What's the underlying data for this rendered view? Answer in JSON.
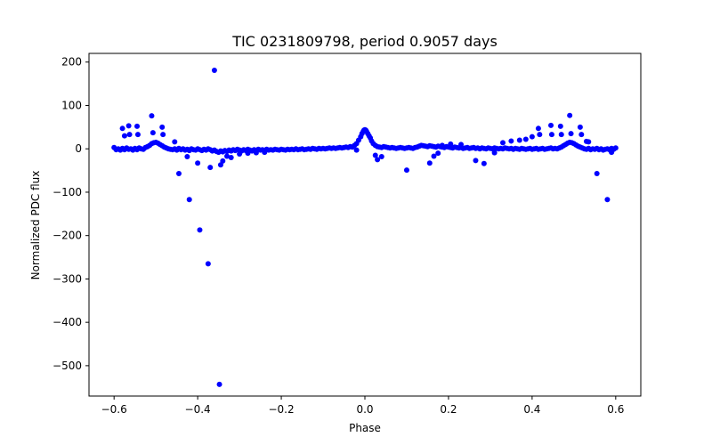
{
  "chart_data": {
    "type": "scatter",
    "title": "TIC 0231809798, period 0.9057 days",
    "xlabel": "Phase",
    "ylabel": "Normalized PDC flux",
    "xlim": [
      -0.66,
      0.66
    ],
    "ylim": [
      -570,
      220
    ],
    "x_ticks": [
      -0.6,
      -0.4,
      -0.2,
      0.0,
      0.2,
      0.4,
      0.6
    ],
    "x_tick_labels": [
      "−0.6",
      "−0.4",
      "−0.2",
      "0.0",
      "0.2",
      "0.4",
      "0.6"
    ],
    "y_ticks": [
      200,
      100,
      0,
      -100,
      -200,
      -300,
      -400,
      -500
    ],
    "y_tick_labels": [
      "200",
      "100",
      "0",
      "−100",
      "−200",
      "−300",
      "−400",
      "−500"
    ],
    "grid": false,
    "legend": "none",
    "marker_color": "#0000ff",
    "series": [
      {
        "points": [
          [
            -0.6,
            3
          ],
          [
            -0.595,
            -2
          ],
          [
            -0.59,
            0
          ],
          [
            -0.585,
            -3
          ],
          [
            -0.58,
            1
          ],
          [
            -0.575,
            -2
          ],
          [
            -0.57,
            2
          ],
          [
            -0.565,
            -1
          ],
          [
            -0.56,
            0
          ],
          [
            -0.555,
            -3
          ],
          [
            -0.55,
            1
          ],
          [
            -0.545,
            -2
          ],
          [
            -0.54,
            2
          ],
          [
            -0.535,
            0
          ],
          [
            -0.53,
            -1
          ],
          [
            -0.525,
            3
          ],
          [
            -0.52,
            5
          ],
          [
            -0.515,
            8
          ],
          [
            -0.51,
            12
          ],
          [
            -0.505,
            14
          ],
          [
            -0.5,
            15
          ],
          [
            -0.495,
            13
          ],
          [
            -0.49,
            10
          ],
          [
            -0.485,
            7
          ],
          [
            -0.48,
            4
          ],
          [
            -0.475,
            2
          ],
          [
            -0.47,
            0
          ],
          [
            -0.465,
            -1
          ],
          [
            -0.46,
            -2
          ],
          [
            -0.455,
            0
          ],
          [
            -0.45,
            -3
          ],
          [
            -0.445,
            1
          ],
          [
            -0.44,
            -2
          ],
          [
            -0.435,
            0
          ],
          [
            -0.43,
            -3
          ],
          [
            -0.425,
            -1
          ],
          [
            -0.42,
            -4
          ],
          [
            -0.415,
            0
          ],
          [
            -0.41,
            -2
          ],
          [
            -0.405,
            -3
          ],
          [
            -0.4,
            0
          ],
          [
            -0.395,
            -2
          ],
          [
            -0.39,
            -4
          ],
          [
            -0.385,
            -1
          ],
          [
            -0.38,
            -3
          ],
          [
            -0.375,
            0
          ],
          [
            -0.37,
            -2
          ],
          [
            -0.365,
            -5
          ],
          [
            -0.36,
            -3
          ],
          [
            -0.355,
            -6
          ],
          [
            -0.35,
            -8
          ],
          [
            -0.345,
            -5
          ],
          [
            -0.34,
            -7
          ],
          [
            -0.335,
            -4
          ],
          [
            -0.33,
            -6
          ],
          [
            -0.325,
            -3
          ],
          [
            -0.32,
            -5
          ],
          [
            -0.315,
            -2
          ],
          [
            -0.31,
            -4
          ],
          [
            -0.305,
            -1
          ],
          [
            -0.3,
            -3
          ],
          [
            -0.295,
            -5
          ],
          [
            -0.29,
            -2
          ],
          [
            -0.285,
            -4
          ],
          [
            -0.28,
            -1
          ],
          [
            -0.275,
            -3
          ],
          [
            -0.27,
            -5
          ],
          [
            -0.265,
            -2
          ],
          [
            -0.26,
            -4
          ],
          [
            -0.255,
            -1
          ],
          [
            -0.25,
            -3
          ],
          [
            -0.245,
            -2
          ],
          [
            -0.24,
            -4
          ],
          [
            -0.235,
            -1
          ],
          [
            -0.23,
            -3
          ],
          [
            -0.225,
            -2
          ],
          [
            -0.22,
            -3
          ],
          [
            -0.215,
            -1
          ],
          [
            -0.21,
            -2
          ],
          [
            -0.205,
            -3
          ],
          [
            -0.2,
            -1
          ],
          [
            -0.195,
            -2
          ],
          [
            -0.19,
            -3
          ],
          [
            -0.185,
            -1
          ],
          [
            -0.18,
            -2
          ],
          [
            -0.175,
            -1
          ],
          [
            -0.17,
            -2
          ],
          [
            -0.165,
            0
          ],
          [
            -0.16,
            -2
          ],
          [
            -0.155,
            -1
          ],
          [
            -0.15,
            0
          ],
          [
            -0.145,
            -2
          ],
          [
            -0.14,
            -1
          ],
          [
            -0.135,
            0
          ],
          [
            -0.13,
            -1
          ],
          [
            -0.125,
            1
          ],
          [
            -0.12,
            0
          ],
          [
            -0.115,
            -1
          ],
          [
            -0.11,
            1
          ],
          [
            -0.105,
            0
          ],
          [
            -0.1,
            1
          ],
          [
            -0.095,
            0
          ],
          [
            -0.09,
            1
          ],
          [
            -0.085,
            2
          ],
          [
            -0.08,
            1
          ],
          [
            -0.075,
            2
          ],
          [
            -0.07,
            1
          ],
          [
            -0.065,
            2
          ],
          [
            -0.06,
            3
          ],
          [
            -0.055,
            2
          ],
          [
            -0.05,
            3
          ],
          [
            -0.045,
            4
          ],
          [
            -0.04,
            3
          ],
          [
            -0.035,
            5
          ],
          [
            -0.03,
            4
          ],
          [
            -0.025,
            8
          ],
          [
            -0.02,
            12
          ],
          [
            -0.015,
            20
          ],
          [
            -0.01,
            28
          ],
          [
            -0.007,
            35
          ],
          [
            -0.004,
            40
          ],
          [
            -0.002,
            43
          ],
          [
            0.0,
            44
          ],
          [
            0.002,
            43
          ],
          [
            0.004,
            40
          ],
          [
            0.007,
            35
          ],
          [
            0.01,
            30
          ],
          [
            0.013,
            25
          ],
          [
            0.016,
            18
          ],
          [
            0.02,
            12
          ],
          [
            0.025,
            8
          ],
          [
            0.03,
            5
          ],
          [
            0.035,
            4
          ],
          [
            0.04,
            3
          ],
          [
            0.045,
            5
          ],
          [
            0.05,
            4
          ],
          [
            0.055,
            3
          ],
          [
            0.06,
            2
          ],
          [
            0.065,
            3
          ],
          [
            0.07,
            2
          ],
          [
            0.075,
            1
          ],
          [
            0.08,
            2
          ],
          [
            0.085,
            3
          ],
          [
            0.09,
            2
          ],
          [
            0.095,
            1
          ],
          [
            0.1,
            2
          ],
          [
            0.105,
            3
          ],
          [
            0.11,
            2
          ],
          [
            0.115,
            1
          ],
          [
            0.12,
            3
          ],
          [
            0.125,
            4
          ],
          [
            0.13,
            6
          ],
          [
            0.135,
            8
          ],
          [
            0.14,
            7
          ],
          [
            0.145,
            6
          ],
          [
            0.15,
            5
          ],
          [
            0.155,
            7
          ],
          [
            0.16,
            6
          ],
          [
            0.165,
            5
          ],
          [
            0.17,
            4
          ],
          [
            0.175,
            6
          ],
          [
            0.18,
            5
          ],
          [
            0.185,
            4
          ],
          [
            0.19,
            3
          ],
          [
            0.195,
            5
          ],
          [
            0.2,
            4
          ],
          [
            0.205,
            3
          ],
          [
            0.21,
            2
          ],
          [
            0.215,
            4
          ],
          [
            0.22,
            3
          ],
          [
            0.225,
            2
          ],
          [
            0.23,
            3
          ],
          [
            0.235,
            1
          ],
          [
            0.24,
            2
          ],
          [
            0.245,
            3
          ],
          [
            0.25,
            1
          ],
          [
            0.255,
            2
          ],
          [
            0.26,
            3
          ],
          [
            0.265,
            1
          ],
          [
            0.27,
            2
          ],
          [
            0.275,
            0
          ],
          [
            0.28,
            2
          ],
          [
            0.285,
            1
          ],
          [
            0.29,
            0
          ],
          [
            0.295,
            2
          ],
          [
            0.3,
            1
          ],
          [
            0.305,
            0
          ],
          [
            0.31,
            2
          ],
          [
            0.315,
            1
          ],
          [
            0.32,
            0
          ],
          [
            0.325,
            1
          ],
          [
            0.33,
            0
          ],
          [
            0.335,
            2
          ],
          [
            0.34,
            1
          ],
          [
            0.345,
            0
          ],
          [
            0.35,
            1
          ],
          [
            0.355,
            -1
          ],
          [
            0.36,
            1
          ],
          [
            0.365,
            0
          ],
          [
            0.37,
            -1
          ],
          [
            0.375,
            1
          ],
          [
            0.38,
            0
          ],
          [
            0.385,
            -1
          ],
          [
            0.39,
            0
          ],
          [
            0.395,
            1
          ],
          [
            0.4,
            -1
          ],
          [
            0.405,
            0
          ],
          [
            0.41,
            1
          ],
          [
            0.415,
            -1
          ],
          [
            0.42,
            0
          ],
          [
            0.425,
            1
          ],
          [
            0.43,
            -1
          ],
          [
            0.435,
            0
          ],
          [
            0.44,
            1
          ],
          [
            0.445,
            2
          ],
          [
            0.45,
            0
          ],
          [
            0.455,
            1
          ],
          [
            0.46,
            0
          ],
          [
            0.465,
            2
          ],
          [
            0.47,
            4
          ],
          [
            0.475,
            7
          ],
          [
            0.48,
            10
          ],
          [
            0.485,
            13
          ],
          [
            0.49,
            15
          ],
          [
            0.495,
            14
          ],
          [
            0.5,
            12
          ],
          [
            0.505,
            9
          ],
          [
            0.51,
            6
          ],
          [
            0.515,
            4
          ],
          [
            0.52,
            2
          ],
          [
            0.525,
            0
          ],
          [
            0.53,
            -1
          ],
          [
            0.535,
            1
          ],
          [
            0.54,
            -2
          ],
          [
            0.545,
            0
          ],
          [
            0.55,
            -1
          ],
          [
            0.555,
            1
          ],
          [
            0.56,
            -2
          ],
          [
            0.565,
            0
          ],
          [
            0.57,
            -3
          ],
          [
            0.575,
            -1
          ],
          [
            0.58,
            0
          ],
          [
            0.585,
            -2
          ],
          [
            0.59,
            1
          ],
          [
            0.595,
            -1
          ],
          [
            0.6,
            2
          ],
          [
            -0.58,
            47
          ],
          [
            -0.575,
            30
          ],
          [
            -0.565,
            53
          ],
          [
            -0.563,
            33
          ],
          [
            -0.545,
            52
          ],
          [
            -0.543,
            33
          ],
          [
            -0.51,
            76
          ],
          [
            -0.507,
            37
          ],
          [
            -0.485,
            50
          ],
          [
            -0.483,
            33
          ],
          [
            -0.455,
            16
          ],
          [
            -0.445,
            -57
          ],
          [
            -0.425,
            -18
          ],
          [
            -0.42,
            -117
          ],
          [
            -0.4,
            -33
          ],
          [
            -0.395,
            -187
          ],
          [
            -0.375,
            -265
          ],
          [
            -0.37,
            -43
          ],
          [
            -0.36,
            181
          ],
          [
            -0.348,
            -543
          ],
          [
            -0.345,
            -37
          ],
          [
            -0.34,
            -28
          ],
          [
            -0.33,
            -17
          ],
          [
            -0.32,
            -20
          ],
          [
            -0.3,
            -12
          ],
          [
            -0.28,
            -10
          ],
          [
            -0.26,
            -9
          ],
          [
            -0.24,
            -8
          ],
          [
            -0.02,
            -3
          ],
          [
            0.025,
            -15
          ],
          [
            0.03,
            -25
          ],
          [
            0.04,
            -18
          ],
          [
            0.1,
            -49
          ],
          [
            0.155,
            -33
          ],
          [
            0.165,
            -17
          ],
          [
            0.175,
            -10
          ],
          [
            0.185,
            8
          ],
          [
            0.205,
            11
          ],
          [
            0.23,
            10
          ],
          [
            0.265,
            -27
          ],
          [
            0.285,
            -34
          ],
          [
            0.31,
            -9
          ],
          [
            0.33,
            14
          ],
          [
            0.35,
            18
          ],
          [
            0.37,
            20
          ],
          [
            0.385,
            22
          ],
          [
            0.4,
            28
          ],
          [
            0.415,
            47
          ],
          [
            0.418,
            33
          ],
          [
            0.445,
            54
          ],
          [
            0.447,
            33
          ],
          [
            0.468,
            52
          ],
          [
            0.47,
            33
          ],
          [
            0.49,
            77
          ],
          [
            0.493,
            35
          ],
          [
            0.515,
            50
          ],
          [
            0.518,
            33
          ],
          [
            0.53,
            17
          ],
          [
            0.535,
            16
          ],
          [
            0.555,
            -57
          ],
          [
            0.58,
            -117
          ],
          [
            0.59,
            -8
          ]
        ]
      }
    ]
  }
}
